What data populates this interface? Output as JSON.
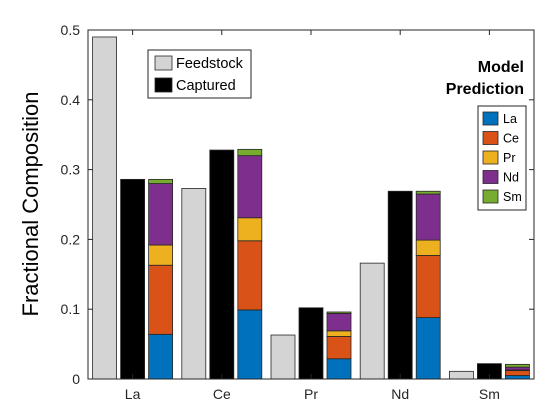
{
  "chart_data": {
    "type": "bar",
    "ylabel": "Fractional Composition",
    "xlabel": "",
    "ylim": [
      0,
      0.5
    ],
    "yticks": [
      "0",
      "0.1",
      "0.2",
      "0.3",
      "0.4",
      "0.5"
    ],
    "categories": [
      "La",
      "Ce",
      "Pr",
      "Nd",
      "Sm"
    ],
    "grid": false,
    "series": [
      {
        "name": "Feedstock",
        "color": "#d4d4d4",
        "values": [
          0.49,
          0.273,
          0.063,
          0.166,
          0.011
        ]
      },
      {
        "name": "Captured",
        "color": "#000000",
        "values": [
          0.286,
          0.328,
          0.102,
          0.269,
          0.022
        ]
      }
    ],
    "model_prediction": {
      "title_line1": "Model",
      "title_line2": "Prediction",
      "components": [
        {
          "name": "La",
          "color": "#0072bd"
        },
        {
          "name": "Ce",
          "color": "#d95319"
        },
        {
          "name": "Pr",
          "color": "#edb120"
        },
        {
          "name": "Nd",
          "color": "#7e2f8e"
        },
        {
          "name": "Sm",
          "color": "#77ac30"
        }
      ],
      "stacks": [
        [
          0.064,
          0.099,
          0.029,
          0.088,
          0.006
        ],
        [
          0.099,
          0.099,
          0.033,
          0.089,
          0.009
        ],
        [
          0.029,
          0.032,
          0.008,
          0.025,
          0.002
        ],
        [
          0.088,
          0.089,
          0.022,
          0.066,
          0.004
        ],
        [
          0.005,
          0.007,
          0.001,
          0.004,
          0.004
        ]
      ]
    },
    "legend_placement": "top-left",
    "model_legend_placement": "top-right"
  }
}
